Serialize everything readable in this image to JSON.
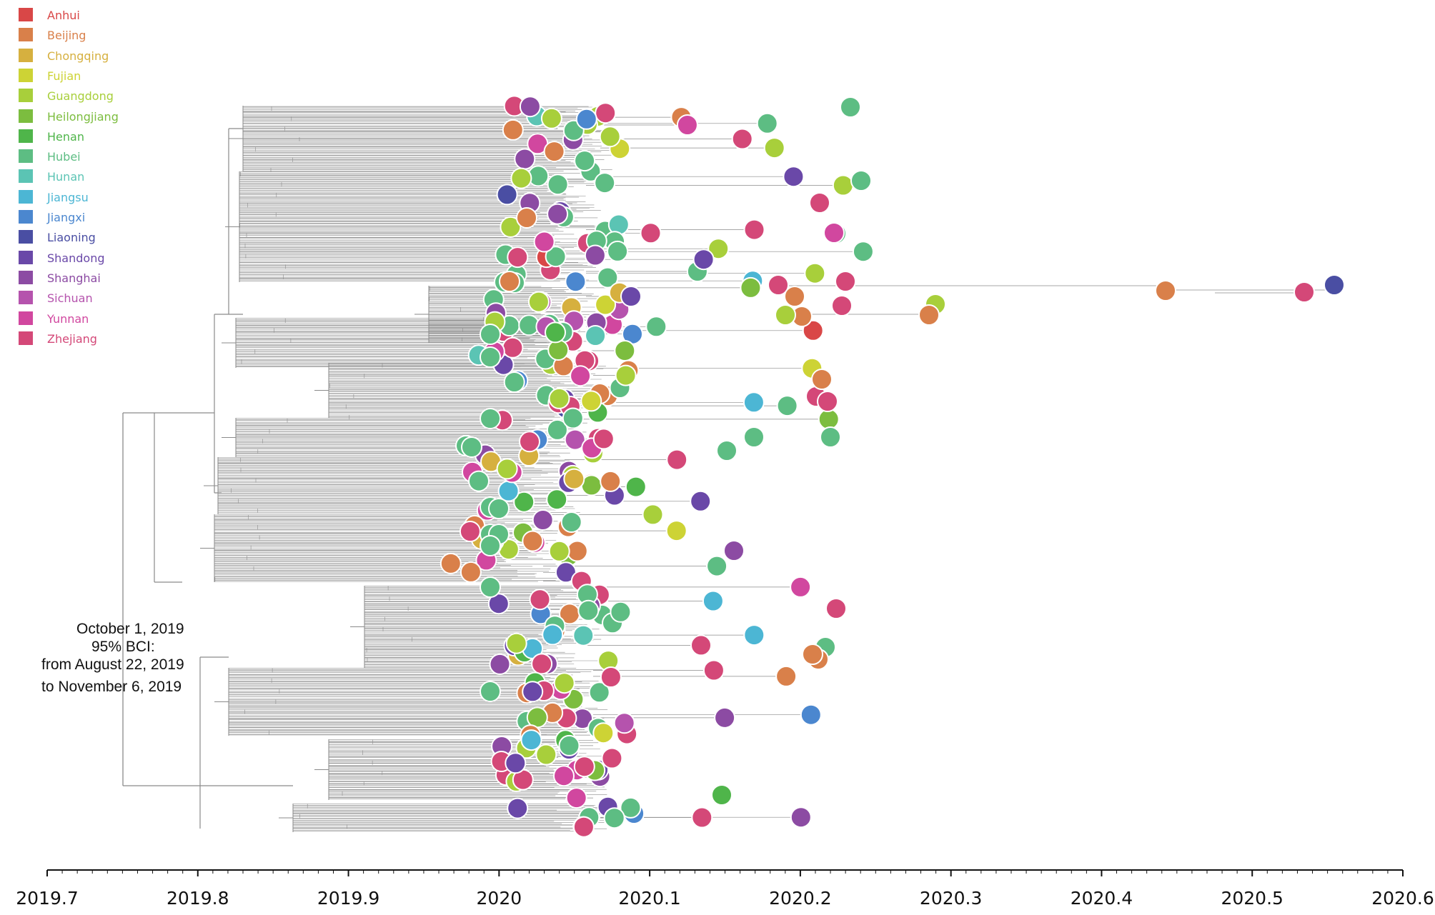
{
  "legend": [
    {
      "label": "Anhui",
      "color": "#d94747"
    },
    {
      "label": "Beijing",
      "color": "#d9804a"
    },
    {
      "label": "Chongqing",
      "color": "#d6b03f"
    },
    {
      "label": "Fujian",
      "color": "#cdd335"
    },
    {
      "label": "Guangdong",
      "color": "#a8cf3b"
    },
    {
      "label": "Heilongjiang",
      "color": "#7cbd3f"
    },
    {
      "label": "Henan",
      "color": "#4fb54a"
    },
    {
      "label": "Hubei",
      "color": "#5dbd83"
    },
    {
      "label": "Hunan",
      "color": "#5bc4b4"
    },
    {
      "label": "Jiangsu",
      "color": "#4cb6d4"
    },
    {
      "label": "Jiangxi",
      "color": "#4b87cf"
    },
    {
      "label": "Liaoning",
      "color": "#4a4ea3"
    },
    {
      "label": "Shandong",
      "color": "#6a48a8"
    },
    {
      "label": "Shanghai",
      "color": "#8c4ba3"
    },
    {
      "label": "Sichuan",
      "color": "#b553ad"
    },
    {
      "label": "Yunnan",
      "color": "#d1479f"
    },
    {
      "label": "Zhejiang",
      "color": "#d44878"
    }
  ],
  "annotation": {
    "line1": "October 1, 2019",
    "line2": "95% BCI:",
    "line3": "from August 22, 2019",
    "line4": "to November 6, 2019"
  },
  "axis": {
    "ticks": [
      "2019.7",
      "2019.8",
      "2019.9",
      "2020",
      "2020.1",
      "2020.2",
      "2020.3",
      "2020.4",
      "2020.5",
      "2020.6"
    ],
    "range": [
      2019.7,
      2020.6
    ]
  }
}
